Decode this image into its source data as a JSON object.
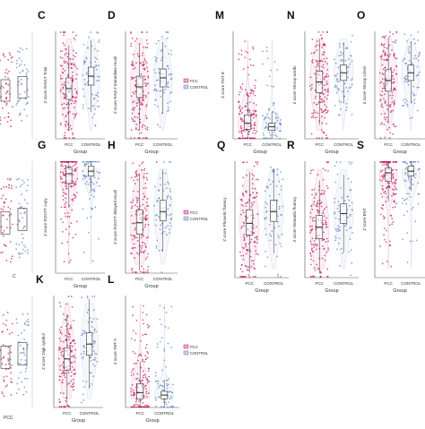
{
  "legend": {
    "items": [
      {
        "name": "PCC",
        "color": "#c2185b"
      },
      {
        "name": "CONTROL",
        "color": "#5c7fc2"
      }
    ]
  },
  "colors": {
    "pcc": "#c2185b",
    "control": "#5c7fc2",
    "axis": "#555555"
  },
  "chart_data": [
    {
      "panel": "C",
      "type": "violin-box-jitter",
      "ylabel": "Z score RAVLT Total",
      "xlabel": "Group",
      "categories": [
        "PCC",
        "CONTROL"
      ],
      "ylim": [
        -3,
        3
      ],
      "median": [
        -0.2,
        0.5
      ],
      "q1": [
        -0.8,
        0.0
      ],
      "q3": [
        0.4,
        1.0
      ]
    },
    {
      "panel": "D",
      "type": "violin-box-jitter",
      "ylabel": "Z score RAVLT immediate recall",
      "xlabel": "Group",
      "categories": [
        "PCC",
        "CONTROL"
      ],
      "ylim": [
        -3,
        3
      ],
      "median": [
        -0.1,
        0.4
      ],
      "q1": [
        -0.7,
        -0.1
      ],
      "q3": [
        0.5,
        0.9
      ]
    },
    {
      "panel": "M",
      "type": "violin-box-jitter",
      "ylabel": "Z score TMT B",
      "xlabel": "Group",
      "categories": [
        "PCC",
        "CONTROL"
      ],
      "ylim": [
        -1,
        8
      ],
      "median": [
        0.3,
        0.0
      ],
      "q1": [
        -0.2,
        -0.3
      ],
      "q3": [
        1.0,
        0.3
      ]
    },
    {
      "panel": "N",
      "type": "violin-box-jitter",
      "ylabel": "Z score Stroop words",
      "xlabel": "Group",
      "categories": [
        "PCC",
        "CONTROL"
      ],
      "ylim": [
        -4,
        3
      ],
      "median": [
        -0.3,
        0.3
      ],
      "q1": [
        -1.0,
        -0.2
      ],
      "q3": [
        0.4,
        0.8
      ]
    },
    {
      "panel": "O",
      "type": "violin-box-jitter",
      "ylabel": "Z score Stroop colors",
      "xlabel": "Group",
      "categories": [
        "PCC",
        "CONTROL"
      ],
      "ylim": [
        -4,
        3
      ],
      "median": [
        -0.2,
        0.3
      ],
      "q1": [
        -0.9,
        -0.2
      ],
      "q3": [
        0.5,
        0.8
      ]
    },
    {
      "panel": "G",
      "type": "violin-box-jitter",
      "ylabel": "Z score ROCFT copy",
      "xlabel": "Group",
      "categories": [
        "PCC",
        "CONTROL"
      ],
      "ylim": [
        -8,
        1
      ],
      "median": [
        0.0,
        0.2
      ],
      "q1": [
        -0.8,
        -0.2
      ],
      "q3": [
        0.5,
        0.6
      ]
    },
    {
      "panel": "H",
      "type": "violin-box-jitter",
      "ylabel": "Z score ROCFT delayed recall",
      "xlabel": "Group",
      "categories": [
        "PCC",
        "CONTROL"
      ],
      "ylim": [
        -3,
        3
      ],
      "median": [
        -0.3,
        0.3
      ],
      "q1": [
        -0.9,
        -0.2
      ],
      "q3": [
        0.4,
        0.9
      ]
    },
    {
      "panel": "Q",
      "type": "violin-box-jitter",
      "ylabel": "Z score Phonetic fluency",
      "xlabel": "Group",
      "categories": [
        "PCC",
        "CONTROL"
      ],
      "ylim": [
        -3,
        3
      ],
      "median": [
        -0.2,
        0.4
      ],
      "q1": [
        -0.8,
        -0.1
      ],
      "q3": [
        0.5,
        1.0
      ]
    },
    {
      "panel": "R",
      "type": "violin-box-jitter",
      "ylabel": "Z score Semantic fluency",
      "xlabel": "Group",
      "categories": [
        "PCC",
        "CONTROL"
      ],
      "ylim": [
        -3,
        3
      ],
      "median": [
        -0.4,
        0.3
      ],
      "q1": [
        -1.0,
        -0.2
      ],
      "q3": [
        0.2,
        0.8
      ]
    },
    {
      "panel": "S",
      "type": "violin-box-jitter",
      "ylabel": "Z score BNT",
      "xlabel": "Group",
      "categories": [
        "PCC",
        "CONTROL"
      ],
      "ylim": [
        -6,
        1
      ],
      "median": [
        0.3,
        0.4
      ],
      "q1": [
        -0.2,
        0.1
      ],
      "q3": [
        0.6,
        0.7
      ]
    },
    {
      "panel": "K",
      "type": "violin-box-jitter",
      "ylabel": "Z score Digit symbol",
      "xlabel": "Group",
      "categories": [
        "PCC",
        "CONTROL"
      ],
      "ylim": [
        -3,
        3
      ],
      "median": [
        -0.4,
        0.4
      ],
      "q1": [
        -1.0,
        -0.2
      ],
      "q3": [
        0.2,
        1.0
      ]
    },
    {
      "panel": "L",
      "type": "violin-box-jitter",
      "ylabel": "Z score TMT A",
      "xlabel": "Group",
      "categories": [
        "PCC",
        "CONTROL"
      ],
      "ylim": [
        -1,
        8
      ],
      "median": [
        0.2,
        0.0
      ],
      "q1": [
        -0.3,
        -0.3
      ],
      "q3": [
        0.9,
        0.3
      ]
    }
  ]
}
